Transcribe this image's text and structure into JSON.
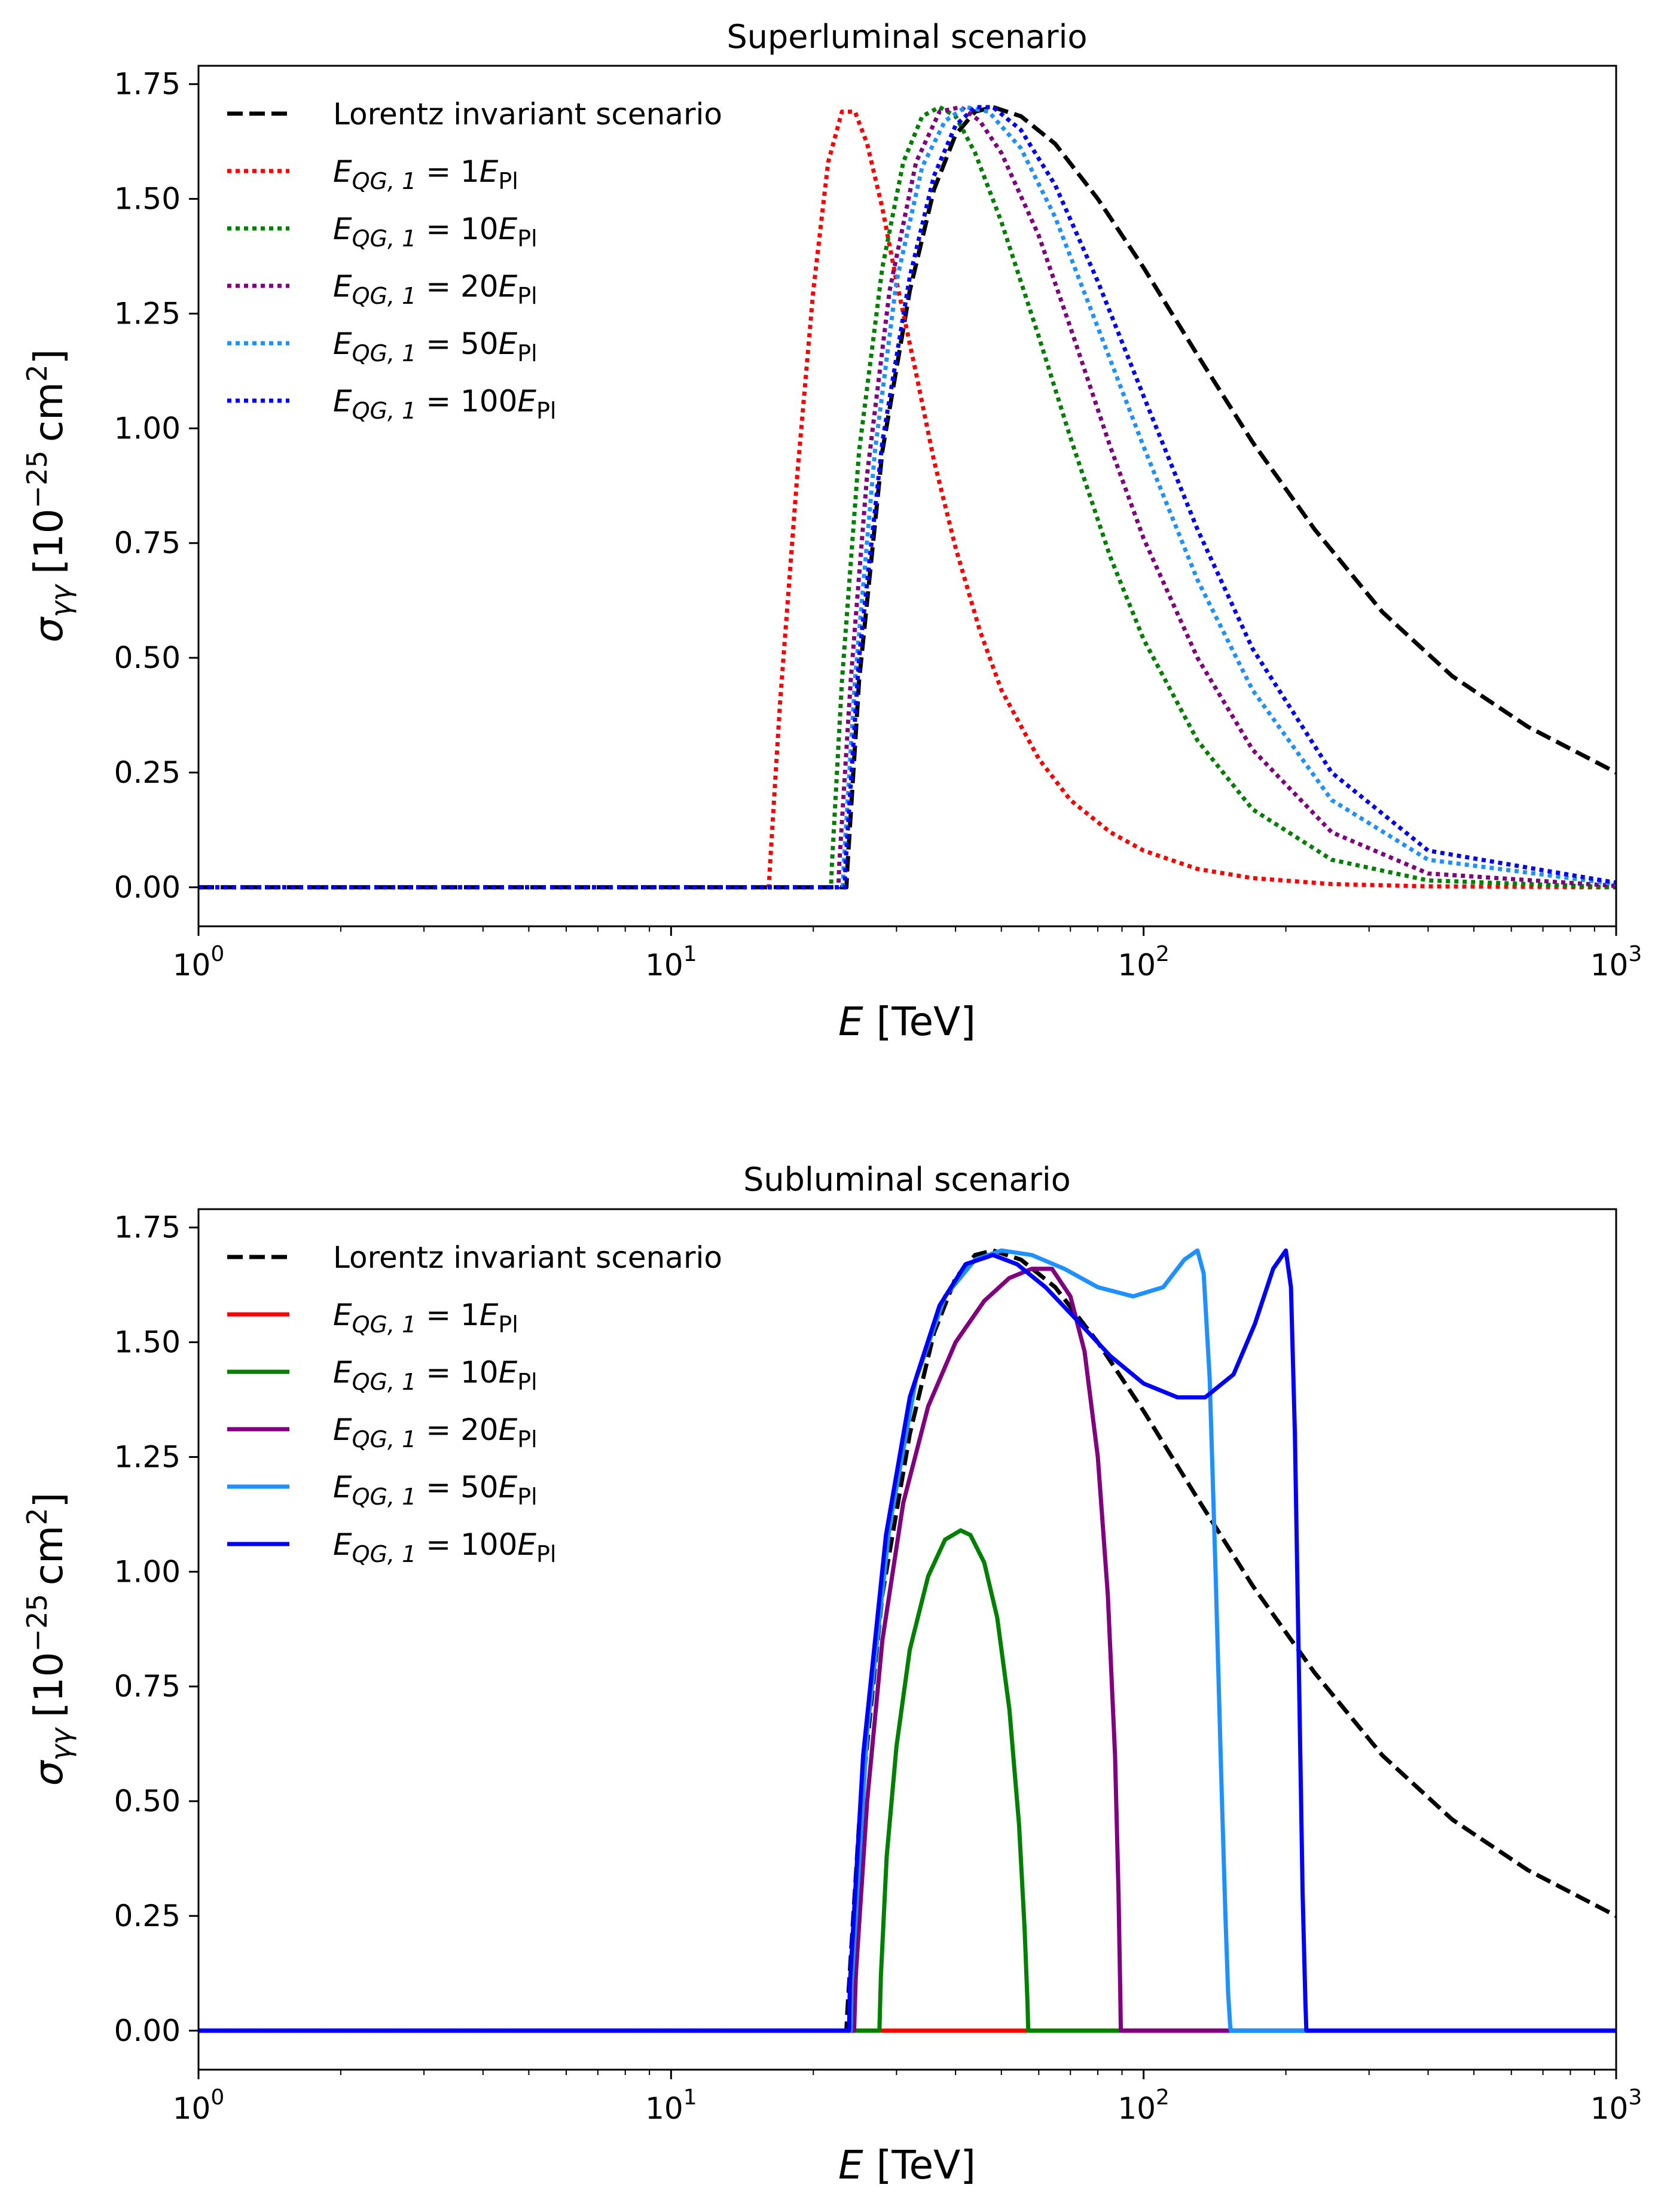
{
  "chart_data": [
    {
      "type": "line",
      "title": "Superluminal scenario",
      "xscale": "log",
      "xlim": [
        1,
        1000
      ],
      "ylim": [
        -0.085,
        1.79
      ],
      "xlabel": {
        "var": "E",
        "unit": "[TeV]"
      },
      "ylabel": {
        "sym": "σ",
        "sub": "γγ",
        "pre": "[10",
        "exp": "−25",
        "post": "cm",
        "post_exp": "2",
        "close": "]"
      },
      "xticks": [
        {
          "base": "10",
          "exp": "0",
          "value": 1
        },
        {
          "base": "10",
          "exp": "1",
          "value": 10
        },
        {
          "base": "10",
          "exp": "2",
          "value": 100
        },
        {
          "base": "10",
          "exp": "3",
          "value": 1000
        }
      ],
      "yticks": [
        "0.00",
        "0.25",
        "0.50",
        "0.75",
        "1.00",
        "1.25",
        "1.50",
        "1.75"
      ],
      "legend_position": "upper-left",
      "series": [
        {
          "label": "Lorentz invariant scenario",
          "color": "#000000",
          "dash": "dashed",
          "x": [
            1,
            23.5,
            23.6,
            25,
            28,
            32,
            36,
            40,
            44,
            48,
            55,
            65,
            80,
            100,
            130,
            170,
            230,
            320,
            450,
            650,
            1000
          ],
          "y": [
            0,
            0,
            0.04,
            0.45,
            0.95,
            1.3,
            1.52,
            1.64,
            1.69,
            1.7,
            1.68,
            1.62,
            1.5,
            1.35,
            1.16,
            0.97,
            0.78,
            0.6,
            0.46,
            0.35,
            0.25
          ]
        },
        {
          "label_pre": "E",
          "label_sub": "QG, 1",
          "label_mid": " = 1",
          "label_post": "Pl",
          "color": "#ff0000",
          "dash": "dotted",
          "x": [
            1,
            16.1,
            16.2,
            17,
            18.5,
            20,
            21.5,
            23,
            24.5,
            26,
            28,
            30,
            33,
            36,
            40,
            45,
            50,
            60,
            70,
            85,
            100,
            130,
            170,
            250,
            400,
            1000
          ],
          "y": [
            0,
            0,
            0.05,
            0.4,
            0.9,
            1.3,
            1.58,
            1.69,
            1.69,
            1.62,
            1.48,
            1.32,
            1.12,
            0.93,
            0.74,
            0.56,
            0.43,
            0.28,
            0.19,
            0.12,
            0.08,
            0.04,
            0.02,
            0.007,
            0.002,
            0
          ]
        },
        {
          "label_pre": "E",
          "label_sub": "QG, 1",
          "label_mid": " = 10",
          "label_post": "Pl",
          "color": "#008000",
          "dash": "dotted",
          "x": [
            1,
            21.8,
            21.9,
            23,
            25,
            28,
            31,
            34,
            37,
            40,
            44,
            50,
            60,
            70,
            85,
            100,
            130,
            170,
            250,
            400,
            1000
          ],
          "y": [
            0,
            0,
            0.05,
            0.45,
            0.95,
            1.35,
            1.58,
            1.68,
            1.7,
            1.68,
            1.6,
            1.45,
            1.2,
            0.98,
            0.72,
            0.54,
            0.32,
            0.17,
            0.06,
            0.015,
            0
          ]
        },
        {
          "label_pre": "E",
          "label_sub": "QG, 1",
          "label_mid": " = 20",
          "label_post": "Pl",
          "color": "#800080",
          "dash": "dotted",
          "x": [
            1,
            22.6,
            22.7,
            24,
            26,
            29,
            33,
            37,
            41,
            45,
            50,
            60,
            70,
            85,
            100,
            130,
            170,
            250,
            400,
            1000
          ],
          "y": [
            0,
            0,
            0.05,
            0.45,
            0.9,
            1.3,
            1.58,
            1.69,
            1.7,
            1.67,
            1.6,
            1.42,
            1.22,
            0.96,
            0.76,
            0.5,
            0.3,
            0.12,
            0.03,
            0.003
          ]
        },
        {
          "label_pre": "E",
          "label_sub": "QG, 1",
          "label_mid": " = 50",
          "label_post": "Pl",
          "color": "#1e90ff",
          "dash": "dotted",
          "x": [
            1,
            23.1,
            23.2,
            24.5,
            27,
            30,
            34,
            38,
            42,
            47,
            55,
            65,
            80,
            100,
            130,
            170,
            250,
            400,
            1000
          ],
          "y": [
            0,
            0,
            0.05,
            0.45,
            0.95,
            1.32,
            1.57,
            1.67,
            1.7,
            1.69,
            1.61,
            1.46,
            1.22,
            0.96,
            0.67,
            0.43,
            0.19,
            0.06,
            0.007
          ]
        },
        {
          "label_pre": "E",
          "label_sub": "QG, 1",
          "label_mid": " = 100",
          "label_post": "Pl",
          "color": "#0000ff",
          "dash": "dotted",
          "x": [
            1,
            23.3,
            23.4,
            25,
            28,
            32,
            36,
            40,
            44,
            48,
            55,
            65,
            80,
            100,
            130,
            170,
            250,
            400,
            1000
          ],
          "y": [
            0,
            0,
            0.05,
            0.5,
            0.97,
            1.33,
            1.55,
            1.66,
            1.7,
            1.7,
            1.65,
            1.53,
            1.32,
            1.07,
            0.78,
            0.52,
            0.25,
            0.08,
            0.01
          ]
        }
      ]
    },
    {
      "type": "line",
      "title": "Subluminal scenario",
      "xscale": "log",
      "xlim": [
        1,
        1000
      ],
      "ylim": [
        -0.085,
        1.79
      ],
      "xlabel": {
        "var": "E",
        "unit": "[TeV]"
      },
      "ylabel": {
        "sym": "σ",
        "sub": "γγ",
        "pre": "[10",
        "exp": "−25",
        "post": "cm",
        "post_exp": "2",
        "close": "]"
      },
      "xticks": [
        {
          "base": "10",
          "exp": "0",
          "value": 1
        },
        {
          "base": "10",
          "exp": "1",
          "value": 10
        },
        {
          "base": "10",
          "exp": "2",
          "value": 100
        },
        {
          "base": "10",
          "exp": "3",
          "value": 1000
        }
      ],
      "yticks": [
        "0.00",
        "0.25",
        "0.50",
        "0.75",
        "1.00",
        "1.25",
        "1.50",
        "1.75"
      ],
      "legend_position": "upper-left",
      "series": [
        {
          "label": "Lorentz invariant scenario",
          "color": "#000000",
          "dash": "dashed",
          "x": [
            1,
            23.5,
            23.6,
            25,
            28,
            32,
            36,
            40,
            44,
            48,
            55,
            65,
            80,
            100,
            130,
            170,
            230,
            320,
            450,
            650,
            1000
          ],
          "y": [
            0,
            0,
            0.04,
            0.45,
            0.95,
            1.3,
            1.52,
            1.64,
            1.69,
            1.7,
            1.68,
            1.62,
            1.5,
            1.35,
            1.16,
            0.97,
            0.78,
            0.6,
            0.46,
            0.35,
            0.25
          ]
        },
        {
          "label_pre": "E",
          "label_sub": "QG, 1",
          "label_mid": " = 1",
          "label_post": "Pl",
          "color": "#ff0000",
          "dash": "solid",
          "x": [
            1,
            1000
          ],
          "y": [
            0,
            0
          ]
        },
        {
          "label_pre": "E",
          "label_sub": "QG, 1",
          "label_mid": " = 10",
          "label_post": "Pl",
          "color": "#008000",
          "dash": "solid",
          "x": [
            1,
            27.6,
            27.8,
            28.6,
            30,
            32,
            35,
            38,
            41,
            43,
            46,
            49,
            52,
            54.5,
            56,
            56.8,
            57,
            1000
          ],
          "y": [
            0,
            0,
            0.12,
            0.38,
            0.62,
            0.83,
            0.99,
            1.07,
            1.09,
            1.08,
            1.02,
            0.9,
            0.7,
            0.45,
            0.22,
            0.06,
            0,
            0
          ]
        },
        {
          "label_pre": "E",
          "label_sub": "QG, 1",
          "label_mid": " = 20",
          "label_post": "Pl",
          "color": "#800080",
          "dash": "solid",
          "x": [
            1,
            24.4,
            24.6,
            26,
            28,
            31,
            35,
            40,
            46,
            52,
            58,
            64,
            70,
            75,
            80,
            84,
            87,
            88.5,
            89.2,
            89.5,
            1000
          ],
          "y": [
            0,
            0,
            0.12,
            0.5,
            0.85,
            1.15,
            1.36,
            1.5,
            1.59,
            1.64,
            1.66,
            1.66,
            1.6,
            1.48,
            1.25,
            0.95,
            0.6,
            0.3,
            0.1,
            0,
            0
          ]
        },
        {
          "label_pre": "E",
          "label_sub": "QG, 1",
          "label_mid": " = 50",
          "label_post": "Pl",
          "color": "#1e90ff",
          "dash": "solid",
          "x": [
            1,
            24,
            24.1,
            26,
            29,
            33,
            38,
            44,
            50,
            58,
            68,
            80,
            95,
            110,
            122,
            130,
            134,
            138,
            142,
            146,
            149,
            151,
            152.5,
            153,
            1000
          ],
          "y": [
            0,
            0,
            0.1,
            0.65,
            1.1,
            1.42,
            1.6,
            1.68,
            1.7,
            1.69,
            1.66,
            1.62,
            1.6,
            1.62,
            1.68,
            1.7,
            1.65,
            1.42,
            1.0,
            0.55,
            0.25,
            0.08,
            0.01,
            0,
            0
          ]
        },
        {
          "label_pre": "E",
          "label_sub": "QG, 1",
          "label_mid": " = 100",
          "label_post": "Pl",
          "color": "#0000ff",
          "dash": "solid",
          "x": [
            1,
            23.8,
            23.9,
            25.5,
            28.5,
            32,
            37,
            42,
            48,
            54,
            62,
            72,
            85,
            100,
            118,
            135,
            155,
            172,
            188,
            200,
            205,
            209,
            213,
            217,
            220,
            221,
            1000
          ],
          "y": [
            0,
            0,
            0.1,
            0.6,
            1.08,
            1.38,
            1.58,
            1.67,
            1.69,
            1.67,
            1.62,
            1.55,
            1.47,
            1.41,
            1.38,
            1.38,
            1.43,
            1.54,
            1.66,
            1.7,
            1.62,
            1.3,
            0.8,
            0.3,
            0.06,
            0,
            0
          ]
        }
      ]
    }
  ]
}
